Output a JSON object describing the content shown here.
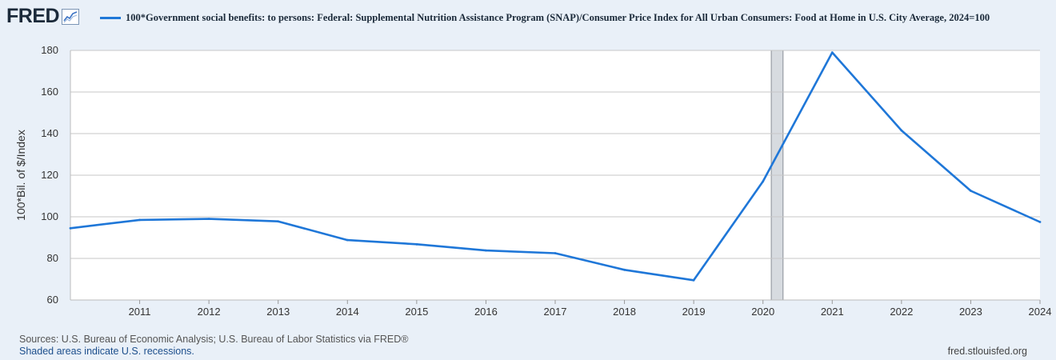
{
  "header": {
    "logo_text": "FRED",
    "logo_icon": "trend-chart-icon",
    "legend_label": "100*Government social benefits: to persons: Federal: Supplemental Nutrition Assistance Program (SNAP)/Consumer Price Index for All Urban Consumers: Food at Home in U.S. City Average, 2024=100"
  },
  "footer": {
    "sources": "Sources: U.S. Bureau of Economic Analysis; U.S. Bureau of Labor Statistics via FRED®",
    "recession_note": "Shaded areas indicate U.S. recessions.",
    "site": "fred.stlouisfed.org"
  },
  "colors": {
    "series": "#1f77d8",
    "background": "#e9f0f8",
    "plot_background": "#ffffff",
    "grid": "#c7c7c7",
    "recession": "#d7dbe0"
  },
  "chart_data": {
    "type": "line",
    "title": "",
    "xlabel": "",
    "ylabel": "100*Bil. of $/Index",
    "xlim": [
      2010,
      2024
    ],
    "ylim": [
      60,
      180
    ],
    "yticks": [
      60,
      80,
      100,
      120,
      140,
      160,
      180
    ],
    "xticks": [
      2011,
      2012,
      2013,
      2014,
      2015,
      2016,
      2017,
      2018,
      2019,
      2020,
      2021,
      2022,
      2023,
      2024
    ],
    "grid": true,
    "recessions": [
      {
        "start": 2020.12,
        "end": 2020.29
      }
    ],
    "series": [
      {
        "name": "100*Government social benefits: to persons: Federal: Supplemental Nutrition Assistance Program (SNAP)/Consumer Price Index for All Urban Consumers: Food at Home in U.S. City Average, 2024=100",
        "x": [
          2010,
          2011,
          2012,
          2013,
          2014,
          2015,
          2016,
          2017,
          2018,
          2019,
          2020,
          2021,
          2022,
          2023,
          2024
        ],
        "values": [
          94.5,
          98.5,
          99.0,
          97.8,
          88.8,
          86.8,
          83.8,
          82.5,
          74.5,
          69.5,
          117.0,
          179.0,
          141.5,
          112.5,
          97.5
        ]
      }
    ]
  }
}
